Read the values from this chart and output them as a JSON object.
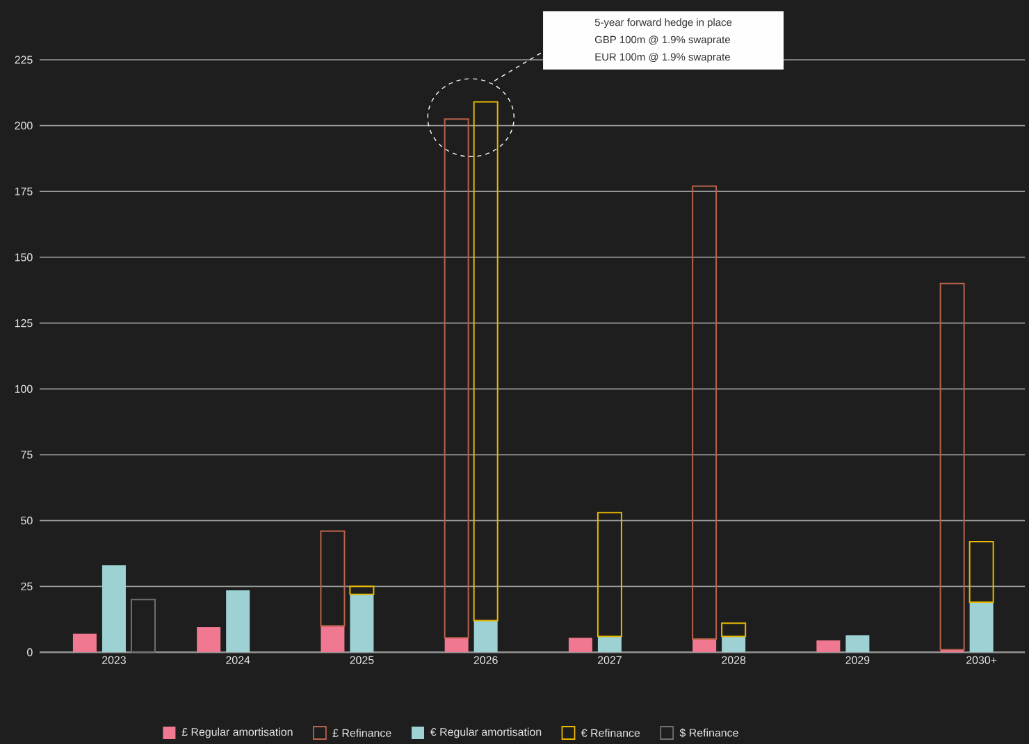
{
  "chart_data": {
    "type": "bar",
    "categories": [
      "2023",
      "2024",
      "2025",
      "2026",
      "2027",
      "2028",
      "2029",
      "2030+"
    ],
    "series": [
      {
        "name": "£ Regular amortisation",
        "color": "#f07890",
        "values": [
          7,
          9.5,
          10,
          5.5,
          5.5,
          5,
          4.5,
          1
        ]
      },
      {
        "name": "£ Refinance",
        "color": "#b8624a",
        "base": [
          null,
          null,
          10,
          5.5,
          null,
          5,
          null,
          1
        ],
        "values": [
          null,
          null,
          36,
          197,
          null,
          172,
          null,
          139
        ]
      },
      {
        "name": "€ Regular amortisation",
        "color": "#9dd1d3",
        "values": [
          33,
          23.5,
          22,
          12,
          6,
          6,
          6.5,
          19
        ]
      },
      {
        "name": "€ Refinance",
        "color": "#e8b800",
        "base": [
          null,
          null,
          22,
          12,
          6,
          6,
          null,
          19
        ],
        "values": [
          null,
          null,
          3,
          197,
          47,
          5,
          null,
          23
        ]
      },
      {
        "name": "$ Refinance",
        "color": "#707074",
        "base": [
          0,
          null,
          null,
          null,
          null,
          null,
          null,
          null
        ],
        "values": [
          20,
          null,
          null,
          null,
          null,
          null,
          null,
          null
        ]
      }
    ],
    "ylim": [
      0,
      225
    ],
    "yticks": [
      0,
      25,
      50,
      75,
      100,
      125,
      150,
      175,
      200,
      225
    ],
    "grid": "y",
    "legend": "bottom",
    "annotations": [
      "5-year forward hedge in place",
      "GBP 100m @ 1.9% swaprate",
      "EUR 100m @ 1.9% swaprate"
    ]
  }
}
